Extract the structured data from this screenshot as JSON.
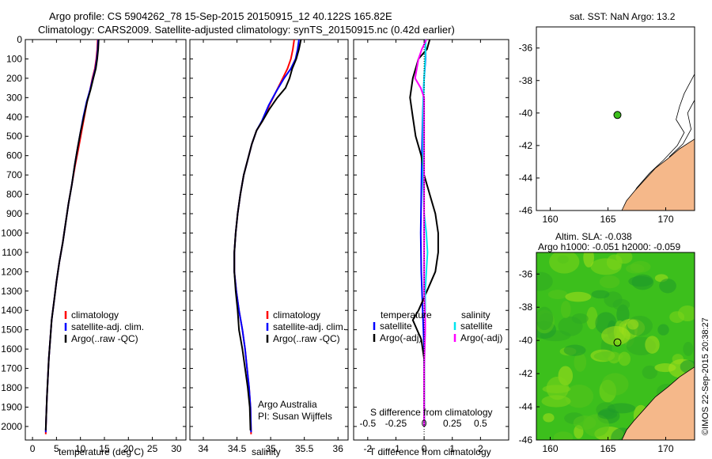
{
  "title": {
    "line1": "Argo profile: CS 5904262_78 15-Sep-2015 20150915_12 40.122S 165.82E",
    "line2": "Climatology: CARS2009. Satellite-adjusted climatology: synTS_20150915.nc (0.42d earlier)"
  },
  "credit": "Argo Australia",
  "pi": "PI: Susan Wijffels",
  "side_label": "©IMOS 22-Sep-2015 20:38:27",
  "colors": {
    "climatology": "#ff0000",
    "satellite": "#0000ff",
    "argo": "#000000",
    "sat_salinity": "#00e5ee",
    "argo_salinity": "#ff00ff",
    "land": "#f5b88a",
    "map_green": "#3cbf1c"
  },
  "chart_data": [
    {
      "type": "line",
      "panel": "temperature",
      "xlabel": "temperature (deg C)",
      "xlim": [
        -1.5,
        32
      ],
      "xticks": [
        0,
        5,
        10,
        15,
        20,
        25,
        30
      ],
      "ylim": [
        0,
        2070
      ],
      "yticks": [
        0,
        100,
        200,
        300,
        400,
        500,
        600,
        700,
        800,
        900,
        1000,
        1100,
        1200,
        1300,
        1400,
        1500,
        1600,
        1700,
        1800,
        1900,
        2000
      ],
      "legend": [
        "climatology",
        "satellite-adj. clim.",
        "Argo(..raw -QC)"
      ],
      "series": [
        {
          "name": "climatology",
          "color": "#ff0000",
          "points": [
            [
              13.6,
              0
            ],
            [
              13.5,
              50
            ],
            [
              13.3,
              100
            ],
            [
              13.0,
              150
            ],
            [
              12.5,
              200
            ],
            [
              12.0,
              260
            ],
            [
              11.4,
              320
            ],
            [
              10.8,
              400
            ],
            [
              10.2,
              480
            ],
            [
              9.6,
              560
            ],
            [
              8.9,
              650
            ],
            [
              8.2,
              750
            ],
            [
              7.5,
              850
            ],
            [
              6.9,
              950
            ],
            [
              6.3,
              1050
            ],
            [
              5.6,
              1150
            ],
            [
              5.0,
              1250
            ],
            [
              4.5,
              1350
            ],
            [
              4.0,
              1450
            ],
            [
              3.7,
              1550
            ],
            [
              3.4,
              1650
            ],
            [
              3.2,
              1750
            ],
            [
              3.0,
              1850
            ],
            [
              2.85,
              1950
            ],
            [
              2.75,
              2040
            ]
          ]
        },
        {
          "name": "satellite-adj. clim.",
          "color": "#0000ff",
          "points": [
            [
              13.7,
              0
            ],
            [
              13.6,
              50
            ],
            [
              13.4,
              100
            ],
            [
              13.1,
              150
            ],
            [
              12.6,
              200
            ],
            [
              12.0,
              260
            ],
            [
              11.3,
              320
            ],
            [
              10.6,
              400
            ],
            [
              10.0,
              480
            ],
            [
              9.4,
              560
            ],
            [
              8.8,
              650
            ],
            [
              8.2,
              750
            ],
            [
              7.5,
              850
            ],
            [
              6.9,
              950
            ],
            [
              6.3,
              1050
            ],
            [
              5.6,
              1150
            ],
            [
              5.0,
              1250
            ],
            [
              4.5,
              1350
            ],
            [
              4.0,
              1450
            ],
            [
              3.7,
              1550
            ],
            [
              3.4,
              1650
            ],
            [
              3.2,
              1750
            ],
            [
              3.0,
              1850
            ],
            [
              2.85,
              1950
            ],
            [
              2.75,
              2030
            ]
          ]
        },
        {
          "name": "Argo(..raw -QC)",
          "color": "#000000",
          "points": [
            [
              13.8,
              0
            ],
            [
              13.7,
              50
            ],
            [
              13.5,
              100
            ],
            [
              13.2,
              150
            ],
            [
              12.7,
              200
            ],
            [
              12.1,
              260
            ],
            [
              11.4,
              320
            ],
            [
              10.7,
              400
            ],
            [
              10.0,
              480
            ],
            [
              9.4,
              560
            ],
            [
              8.8,
              650
            ],
            [
              8.2,
              750
            ],
            [
              7.5,
              850
            ],
            [
              6.9,
              950
            ],
            [
              6.3,
              1050
            ],
            [
              5.6,
              1150
            ],
            [
              5.0,
              1250
            ],
            [
              4.5,
              1350
            ],
            [
              4.0,
              1450
            ],
            [
              3.7,
              1550
            ],
            [
              3.4,
              1650
            ],
            [
              3.2,
              1750
            ],
            [
              3.0,
              1850
            ],
            [
              2.85,
              1950
            ],
            [
              2.75,
              2020
            ]
          ]
        }
      ]
    },
    {
      "type": "line",
      "panel": "salinity",
      "xlabel": "salinity",
      "xlim": [
        33.8,
        36.15
      ],
      "xticks": [
        34,
        34.5,
        35,
        35.5,
        36
      ],
      "xtick_labels": [
        "34",
        "34.5",
        "35",
        "35.5",
        "36"
      ],
      "ylim": [
        0,
        2070
      ],
      "legend": [
        "climatology",
        "satellite-adj. clim.",
        "Argo(..raw -QC)"
      ],
      "series": [
        {
          "name": "climatology",
          "color": "#ff0000",
          "points": [
            [
              35.35,
              0
            ],
            [
              35.33,
              50
            ],
            [
              35.3,
              100
            ],
            [
              35.25,
              150
            ],
            [
              35.18,
              200
            ],
            [
              35.08,
              270
            ],
            [
              34.98,
              340
            ],
            [
              34.88,
              420
            ],
            [
              34.79,
              470
            ],
            [
              34.72,
              540
            ],
            [
              34.66,
              620
            ],
            [
              34.6,
              700
            ],
            [
              34.55,
              800
            ],
            [
              34.51,
              900
            ],
            [
              34.48,
              1000
            ],
            [
              34.46,
              1100
            ],
            [
              34.46,
              1200
            ],
            [
              34.49,
              1300
            ],
            [
              34.53,
              1400
            ],
            [
              34.58,
              1500
            ],
            [
              34.62,
              1600
            ],
            [
              34.65,
              1700
            ],
            [
              34.68,
              1800
            ],
            [
              34.7,
              1900
            ],
            [
              34.71,
              2040
            ]
          ]
        },
        {
          "name": "satellite-adj. clim.",
          "color": "#0000ff",
          "points": [
            [
              35.42,
              0
            ],
            [
              35.4,
              50
            ],
            [
              35.37,
              100
            ],
            [
              35.3,
              150
            ],
            [
              35.2,
              200
            ],
            [
              35.08,
              270
            ],
            [
              34.97,
              340
            ],
            [
              34.87,
              420
            ],
            [
              34.79,
              470
            ],
            [
              34.72,
              540
            ],
            [
              34.66,
              620
            ],
            [
              34.6,
              700
            ],
            [
              34.55,
              800
            ],
            [
              34.51,
              900
            ],
            [
              34.48,
              1000
            ],
            [
              34.46,
              1100
            ],
            [
              34.46,
              1200
            ],
            [
              34.49,
              1300
            ],
            [
              34.53,
              1400
            ],
            [
              34.58,
              1500
            ],
            [
              34.62,
              1600
            ],
            [
              34.65,
              1700
            ],
            [
              34.68,
              1800
            ],
            [
              34.7,
              1900
            ],
            [
              34.71,
              2030
            ]
          ]
        },
        {
          "name": "Argo(..raw -QC)",
          "color": "#000000",
          "points": [
            [
              35.45,
              0
            ],
            [
              35.42,
              50
            ],
            [
              35.38,
              100
            ],
            [
              35.32,
              150
            ],
            [
              35.28,
              200
            ],
            [
              35.22,
              250
            ],
            [
              35.1,
              300
            ],
            [
              34.98,
              360
            ],
            [
              34.88,
              420
            ],
            [
              34.79,
              470
            ],
            [
              34.72,
              540
            ],
            [
              34.66,
              620
            ],
            [
              34.6,
              700
            ],
            [
              34.55,
              800
            ],
            [
              34.51,
              900
            ],
            [
              34.48,
              1000
            ],
            [
              34.46,
              1100
            ],
            [
              34.46,
              1200
            ],
            [
              34.48,
              1300
            ],
            [
              34.51,
              1400
            ],
            [
              34.53,
              1500
            ],
            [
              34.58,
              1600
            ],
            [
              34.62,
              1700
            ],
            [
              34.66,
              1800
            ],
            [
              34.69,
              1900
            ],
            [
              34.7,
              2020
            ]
          ]
        }
      ]
    },
    {
      "type": "line",
      "panel": "difference",
      "xlabel": "T difference from climatology",
      "xlim": [
        -2.5,
        3.0
      ],
      "xticks": [
        -2,
        -1,
        0,
        1,
        2
      ],
      "top_label": "S difference from climatology",
      "top_xticks": [
        -0.5,
        -0.25,
        0,
        0.25,
        0.5
      ],
      "top_xtick_labels": [
        "-0.5",
        "-0.25",
        "0",
        "0.25",
        "0.5"
      ],
      "top_scale": 4,
      "ylim": [
        0,
        2070
      ],
      "legend_temperature_title": "temperature",
      "legend_salinity_title": "salinity",
      "legend_temperature": [
        "satellite",
        "Argo(-adj)"
      ],
      "legend_salinity": [
        "satellite",
        "Argo(-adj)"
      ],
      "series": [
        {
          "name": "T satellite",
          "color": "#0000ff",
          "points": [
            [
              0.05,
              0
            ],
            [
              0.05,
              100
            ],
            [
              0,
              200
            ],
            [
              -0.05,
              400
            ],
            [
              -0.08,
              600
            ],
            [
              -0.1,
              800
            ],
            [
              -0.12,
              1000
            ],
            [
              -0.1,
              1200
            ],
            [
              -0.05,
              1400
            ],
            [
              0,
              1600
            ],
            [
              0,
              2000
            ]
          ]
        },
        {
          "name": "T Argo(-adj)",
          "color": "#000000",
          "points": [
            [
              0.2,
              0
            ],
            [
              0.1,
              50
            ],
            [
              -0.2,
              100
            ],
            [
              -0.4,
              200
            ],
            [
              -0.5,
              300
            ],
            [
              -0.4,
              400
            ],
            [
              -0.3,
              500
            ],
            [
              -0.1,
              600
            ],
            [
              0,
              700
            ],
            [
              0.2,
              800
            ],
            [
              0.4,
              900
            ],
            [
              0.5,
              1000
            ],
            [
              0.5,
              1100
            ],
            [
              0.4,
              1200
            ],
            [
              0.1,
              1300
            ],
            [
              -0.2,
              1400
            ],
            [
              -0.4,
              1450
            ],
            [
              -0.1,
              1550
            ],
            [
              0,
              1650
            ],
            [
              0,
              2000
            ]
          ]
        },
        {
          "name": "S satellite",
          "color": "#00e5ee",
          "points": [
            [
              0.015,
              0
            ],
            [
              0.01,
              100
            ],
            [
              0,
              200
            ],
            [
              -0.01,
              400
            ],
            [
              -0.01,
              700
            ],
            [
              0,
              900
            ],
            [
              0.02,
              1000
            ],
            [
              0.03,
              1100
            ],
            [
              0.02,
              1200
            ],
            [
              0.01,
              1300
            ],
            [
              0.01,
              1500
            ],
            [
              0,
              1700
            ],
            [
              0,
              2000
            ]
          ]
        },
        {
          "name": "S Argo(-adj)",
          "color": "#ff00ff",
          "points": [
            [
              0.02,
              0
            ],
            [
              -0.02,
              50
            ],
            [
              -0.05,
              100
            ],
            [
              -0.08,
              200
            ],
            [
              -0.03,
              250
            ],
            [
              0,
              300
            ],
            [
              0,
              400
            ],
            [
              0,
              1300
            ],
            [
              0.01,
              1450
            ],
            [
              0.01,
              1500
            ],
            [
              0,
              1700
            ],
            [
              0,
              2000
            ]
          ]
        }
      ]
    },
    {
      "type": "map",
      "panel": "sst_map",
      "title": "sat. SST: NaN Argo: 13.2",
      "xlim": [
        158.8,
        172.5
      ],
      "ylim": [
        -46,
        -34.7
      ],
      "xticks": [
        160,
        165,
        170
      ],
      "yticks": [
        -36,
        -38,
        -40,
        -42,
        -44,
        -46
      ],
      "marker": {
        "lon": 165.82,
        "lat": -40.12,
        "color": "#3cbf1c"
      }
    },
    {
      "type": "heatmap",
      "panel": "sla_map",
      "title": "Altim. SLA: -0.038",
      "subtitle": "Argo h1000: -0.051 h2000: -0.059",
      "xlim": [
        158.8,
        172.5
      ],
      "ylim": [
        -46,
        -34.7
      ],
      "xticks": [
        160,
        165,
        170
      ],
      "yticks": [
        -36,
        -38,
        -40,
        -42,
        -44,
        -46
      ],
      "marker": {
        "lon": 165.82,
        "lat": -40.12
      }
    }
  ]
}
